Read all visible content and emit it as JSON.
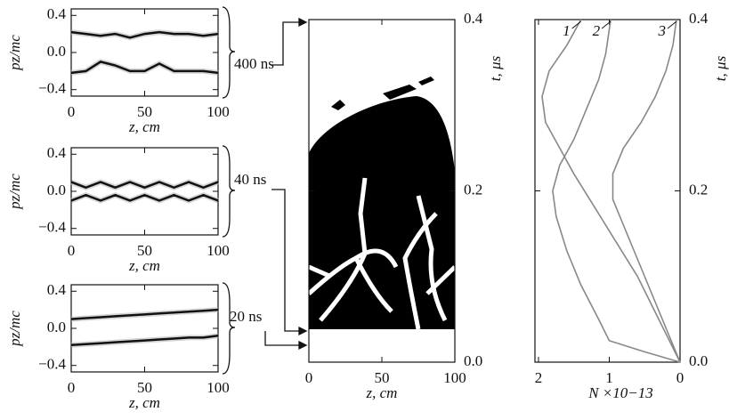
{
  "chart_data": [
    {
      "type": "line",
      "ylabel": "pz/mc",
      "xlabel": "z, cm",
      "annotation": "400 ns",
      "y_axis_side": "left",
      "xlim": [
        0,
        100
      ],
      "ylim": [
        -0.47,
        0.47
      ],
      "xticks": [
        0,
        50,
        100
      ],
      "yticks": [
        {
          "value": 0.4,
          "label": "0.4"
        },
        {
          "value": 0,
          "label": "0.0"
        },
        {
          "value": -0.4,
          "label": "−0.4"
        }
      ],
      "series": [
        {
          "color": "#111111",
          "x": [
            0,
            10,
            20,
            30,
            40,
            50,
            60,
            70,
            80,
            90,
            100
          ],
          "values": [
            0.22,
            0.2,
            0.18,
            0.2,
            0.16,
            0.2,
            0.22,
            0.2,
            0.2,
            0.18,
            0.2
          ]
        },
        {
          "color": "#111111",
          "x": [
            0,
            10,
            20,
            30,
            40,
            50,
            60,
            70,
            80,
            90,
            100
          ],
          "values": [
            -0.22,
            -0.2,
            -0.1,
            -0.14,
            -0.2,
            -0.2,
            -0.12,
            -0.2,
            -0.2,
            -0.2,
            -0.22
          ]
        }
      ]
    },
    {
      "type": "line",
      "ylabel": "pz/mc",
      "xlabel": "z, cm",
      "annotation": "40 ns",
      "y_axis_side": "left",
      "xlim": [
        0,
        100
      ],
      "ylim": [
        -0.47,
        0.47
      ],
      "xticks": [
        0,
        50,
        100
      ],
      "yticks": [
        {
          "value": 0.4,
          "label": "0.4"
        },
        {
          "value": 0,
          "label": "0.0"
        },
        {
          "value": -0.4,
          "label": "−0.4"
        }
      ],
      "series": [
        {
          "color": "#111111",
          "x": [
            0,
            10,
            20,
            30,
            40,
            50,
            60,
            70,
            80,
            90,
            100
          ],
          "values": [
            0.1,
            0.04,
            0.1,
            0.04,
            0.1,
            0.04,
            0.1,
            0.04,
            0.1,
            0.04,
            0.1
          ]
        },
        {
          "color": "#111111",
          "x": [
            0,
            10,
            20,
            30,
            40,
            50,
            60,
            70,
            80,
            90,
            100
          ],
          "values": [
            -0.1,
            -0.04,
            -0.1,
            -0.04,
            -0.1,
            -0.04,
            -0.1,
            -0.04,
            -0.1,
            -0.04,
            -0.1
          ]
        }
      ]
    },
    {
      "type": "line",
      "ylabel": "pz/mc",
      "xlabel": "z, cm",
      "annotation": "20 ns",
      "y_axis_side": "left",
      "xlim": [
        0,
        100
      ],
      "ylim": [
        -0.47,
        0.47
      ],
      "xticks": [
        0,
        50,
        100
      ],
      "yticks": [
        {
          "value": 0.4,
          "label": "0.4"
        },
        {
          "value": 0,
          "label": "0.0"
        },
        {
          "value": -0.4,
          "label": "−0.4"
        }
      ],
      "series": [
        {
          "color": "#111111",
          "x": [
            0,
            10,
            20,
            30,
            40,
            50,
            60,
            70,
            80,
            90,
            100
          ],
          "values": [
            0.1,
            0.11,
            0.12,
            0.13,
            0.14,
            0.15,
            0.16,
            0.17,
            0.18,
            0.19,
            0.2
          ]
        },
        {
          "color": "#111111",
          "x": [
            0,
            10,
            20,
            30,
            40,
            50,
            60,
            70,
            80,
            90,
            100
          ],
          "values": [
            -0.18,
            -0.17,
            -0.16,
            -0.15,
            -0.14,
            -0.13,
            -0.12,
            -0.11,
            -0.1,
            -0.1,
            -0.08
          ]
        }
      ]
    },
    {
      "type": "image",
      "ylabel": "t, μs",
      "xlabel": "z, cm",
      "y_axis_side": "right",
      "xlim": [
        0,
        100
      ],
      "ylim": [
        0,
        0.4
      ],
      "xticks": [
        0,
        50,
        100
      ],
      "yticks": [
        {
          "value": 0,
          "label": "0.0"
        },
        {
          "value": 0.2,
          "label": "0.2"
        },
        {
          "value": 0.4,
          "label": "0.4"
        }
      ]
    },
    {
      "type": "line",
      "ylabel": "t, μs",
      "xlabel": "N ×10−13",
      "y_axis_side": "right",
      "xlim": [
        2.05,
        0
      ],
      "ylim": [
        0,
        0.4
      ],
      "xticks": [
        2,
        1,
        0
      ],
      "yticks": [
        {
          "value": 0,
          "label": "0.0"
        },
        {
          "value": 0.2,
          "label": "0.2"
        },
        {
          "value": 0.4,
          "label": "0.4"
        }
      ],
      "series": [
        {
          "name": "1",
          "color": "#888888",
          "x": [
            1.4,
            1.6,
            1.85,
            1.95,
            1.9,
            1.7,
            1.5,
            1.2,
            0.9,
            0.6,
            0.3,
            0
          ],
          "values": [
            0.4,
            0.37,
            0.34,
            0.31,
            0.28,
            0.25,
            0.22,
            0.18,
            0.14,
            0.1,
            0.05,
            0
          ]
        },
        {
          "name": "2",
          "color": "#888888",
          "x": [
            0.98,
            1.05,
            1.15,
            1.3,
            1.5,
            1.7,
            1.8,
            1.75,
            1.6,
            1.4,
            1.15,
            1.0,
            0.5,
            0
          ],
          "values": [
            0.4,
            0.36,
            0.33,
            0.3,
            0.26,
            0.23,
            0.2,
            0.17,
            0.13,
            0.09,
            0.05,
            0.025,
            0.012,
            0
          ]
        },
        {
          "name": "3",
          "color": "#888888",
          "x": [
            0.05,
            0.1,
            0.2,
            0.35,
            0.55,
            0.8,
            0.95,
            0.95,
            0.8,
            0.6,
            0.4,
            0.2,
            0
          ],
          "values": [
            0.4,
            0.37,
            0.34,
            0.31,
            0.28,
            0.25,
            0.22,
            0.19,
            0.16,
            0.12,
            0.08,
            0.04,
            0
          ]
        }
      ]
    }
  ]
}
